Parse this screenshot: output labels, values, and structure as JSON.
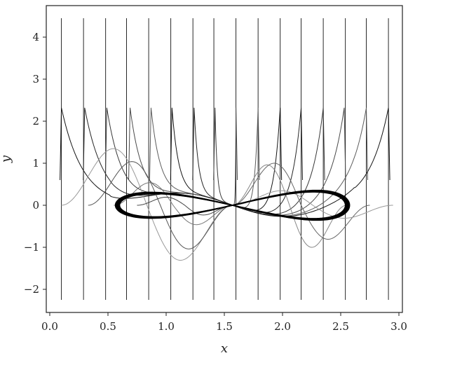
{
  "chart_data": {
    "type": "line",
    "title": "",
    "xlabel": "x",
    "ylabel": "y",
    "xlim": [
      -0.03,
      3.03
    ],
    "ylim": [
      -2.55,
      4.75
    ],
    "xticks": [
      0.0,
      0.5,
      1.0,
      1.5,
      2.0,
      2.5,
      3.0
    ],
    "xtick_labels": [
      "0.0",
      "0.5",
      "1.0",
      "1.5",
      "2.0",
      "2.5",
      "3.0"
    ],
    "yticks": [
      -2,
      -1,
      0,
      1,
      2,
      3,
      4
    ],
    "ytick_labels": [
      "−2",
      "−1",
      "0",
      "1",
      "2",
      "3",
      "4"
    ],
    "grid": false,
    "legend": "none",
    "vertical_lines": {
      "x": [
        0.1,
        0.29,
        0.48,
        0.66,
        0.85,
        1.04,
        1.23,
        1.41,
        1.6,
        1.79,
        1.98,
        2.16,
        2.35,
        2.54,
        2.72,
        2.91
      ],
      "y_range": [
        -2.25,
        4.45
      ],
      "color": "#111111"
    },
    "spike_curves": {
      "peak_x": [
        0.1,
        0.3,
        0.49,
        0.69,
        0.87,
        1.05,
        1.24,
        1.42,
        1.6,
        1.79,
        1.98,
        2.16,
        2.35,
        2.53,
        2.72,
        2.91
      ],
      "peak_y": 2.32,
      "color": "#1a1a1a"
    },
    "loop_curve": {
      "center": [
        1.57,
        0.0
      ],
      "half_width": 1.0,
      "amplitude": 0.32,
      "color": "#000000"
    },
    "lobe_curves": [
      {
        "x0": 0.1,
        "x1": 1.57,
        "ymax": 1.75,
        "ymin": -1.7,
        "color": "#9a9a9a"
      },
      {
        "x0": 0.33,
        "x1": 1.57,
        "ymax": 1.35,
        "ymin": -1.35,
        "color": "#555555"
      },
      {
        "x0": 0.55,
        "x1": 1.57,
        "ymax": 0.7,
        "ymin": -0.6,
        "color": "#777777"
      },
      {
        "x0": 0.75,
        "x1": 1.57,
        "ymax": 0.25,
        "ymin": -0.3,
        "color": "#444444"
      },
      {
        "x0": 1.57,
        "x1": 2.55,
        "ymax": 1.25,
        "ymin": -1.3,
        "color": "#888888"
      },
      {
        "x0": 1.57,
        "x1": 2.75,
        "ymax": 1.3,
        "ymin": -1.05,
        "color": "#666666"
      },
      {
        "x0": 1.57,
        "x1": 2.95,
        "ymax": 0.45,
        "ymin": -0.4,
        "color": "#999999"
      }
    ]
  }
}
